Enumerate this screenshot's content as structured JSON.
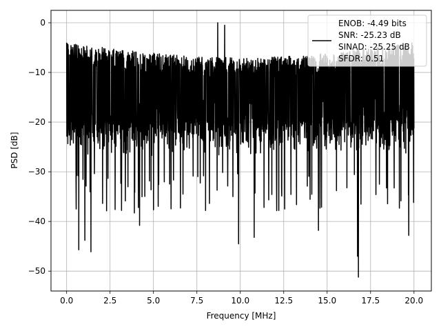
{
  "chart_data": {
    "type": "line",
    "title": "",
    "xlabel": "Frequency [MHz]",
    "ylabel": "PSD [dB]",
    "xlim": [
      -0.9,
      21.0
    ],
    "ylim": [
      -54,
      2.5
    ],
    "xticks": [
      0,
      2.5,
      5,
      7.5,
      10,
      12.5,
      15,
      17.5,
      20
    ],
    "xtick_labels": [
      "0.0",
      "2.5",
      "5.0",
      "7.5",
      "10.0",
      "12.5",
      "15.0",
      "17.5",
      "20.0"
    ],
    "yticks": [
      0,
      -10,
      -20,
      -30,
      -40,
      -50
    ],
    "ytick_labels": [
      "0",
      "−10",
      "−20",
      "−30",
      "−40",
      "−50"
    ],
    "grid": true,
    "legend_position": "top-right",
    "series": [
      {
        "name": "",
        "color": "#000000",
        "x_range": [
          0,
          20
        ],
        "points": 2000,
        "noise_floor_db": -14,
        "band_top_db": [
          -4,
          -7
        ],
        "band_bottom_db": [
          -20,
          -27
        ],
        "notable_points": [
          {
            "x": 0.0,
            "y": -4.0
          },
          {
            "x": 0.55,
            "y": -37.5
          },
          {
            "x": 0.7,
            "y": -45.7
          },
          {
            "x": 1.4,
            "y": -46.1
          },
          {
            "x": 1.05,
            "y": -43.8
          },
          {
            "x": 4.2,
            "y": -40.8
          },
          {
            "x": 3.9,
            "y": -38.3
          },
          {
            "x": 6.7,
            "y": -34.5
          },
          {
            "x": 8.0,
            "y": -37.8
          },
          {
            "x": 9.9,
            "y": -44.5
          },
          {
            "x": 10.8,
            "y": -43.2
          },
          {
            "x": 14.5,
            "y": -41.8
          },
          {
            "x": 16.8,
            "y": -51.2
          },
          {
            "x": 16.75,
            "y": -47.0
          },
          {
            "x": 19.7,
            "y": -42.8
          },
          {
            "x": 8.7,
            "y": 0.0
          },
          {
            "x": 9.1,
            "y": -0.5
          }
        ]
      }
    ]
  },
  "legend": {
    "lines": [
      "ENOB: -4.49 bits",
      "SNR: -25.23 dB",
      "SINAD: -25.25 dB",
      "SFDR: 0.51"
    ]
  }
}
